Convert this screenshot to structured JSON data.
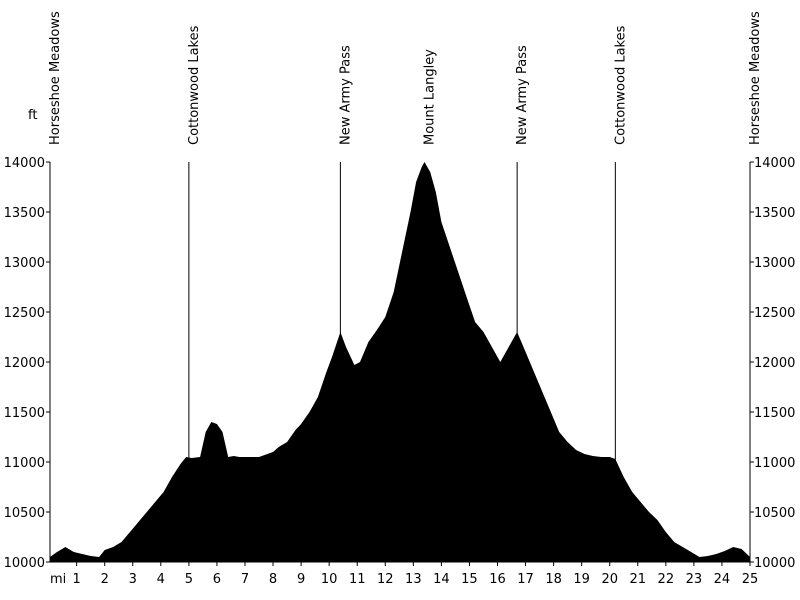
{
  "chart_data": {
    "type": "area",
    "y_unit": "ft",
    "x_unit": "mi",
    "xlim": [
      0.05,
      25.0
    ],
    "ylim": [
      10000,
      14000
    ],
    "x_ticks": [
      1,
      2,
      3,
      4,
      5,
      6,
      7,
      8,
      9,
      10,
      11,
      12,
      13,
      14,
      15,
      16,
      17,
      18,
      19,
      20,
      21,
      22,
      23,
      24,
      25
    ],
    "y_ticks": [
      10000,
      10500,
      11000,
      11500,
      12000,
      12500,
      13000,
      13500,
      14000
    ],
    "landmarks": [
      {
        "name": "Horseshoe Meadows",
        "mile": 0.05,
        "line": false
      },
      {
        "name": "Cottonwood Lakes",
        "mile": 5.0,
        "line": true
      },
      {
        "name": "New Army Pass",
        "mile": 10.4,
        "line": true
      },
      {
        "name": "Mount Langley",
        "mile": 13.4,
        "line": false
      },
      {
        "name": "New Army Pass",
        "mile": 16.7,
        "line": true
      },
      {
        "name": "Cottonwood Lakes",
        "mile": 20.2,
        "line": true
      },
      {
        "name": "Horseshoe Meadows",
        "mile": 25.0,
        "line": false
      }
    ],
    "series": [
      {
        "fill": "#000000",
        "x": [
          0.05,
          0.3,
          0.6,
          0.9,
          1.2,
          1.5,
          1.8,
          2.0,
          2.3,
          2.6,
          2.9,
          3.2,
          3.5,
          3.8,
          4.1,
          4.4,
          4.7,
          4.9,
          5.1,
          5.4,
          5.6,
          5.8,
          6.0,
          6.2,
          6.4,
          6.6,
          6.8,
          7.0,
          7.5,
          8.0,
          8.2,
          8.5,
          8.8,
          9.0,
          9.3,
          9.6,
          9.9,
          10.1,
          10.4,
          10.6,
          10.9,
          11.1,
          11.4,
          11.7,
          12.0,
          12.3,
          12.6,
          12.9,
          13.1,
          13.3,
          13.4,
          13.6,
          13.8,
          14.0,
          14.3,
          14.6,
          14.9,
          15.2,
          15.5,
          15.8,
          16.1,
          16.4,
          16.7,
          17.0,
          17.3,
          17.6,
          17.9,
          18.2,
          18.5,
          18.8,
          19.1,
          19.4,
          19.7,
          20.0,
          20.2,
          20.5,
          20.8,
          21.1,
          21.4,
          21.7,
          22.0,
          22.3,
          22.6,
          22.9,
          23.2,
          23.5,
          23.8,
          24.1,
          24.4,
          24.7,
          25.0
        ],
        "y": [
          10050,
          10100,
          10150,
          10100,
          10080,
          10060,
          10050,
          10120,
          10150,
          10200,
          10300,
          10400,
          10500,
          10600,
          10700,
          10850,
          10980,
          11050,
          11040,
          11050,
          11300,
          11400,
          11380,
          11300,
          11050,
          11060,
          11050,
          11050,
          11050,
          11100,
          11150,
          11200,
          11320,
          11380,
          11500,
          11650,
          11900,
          12050,
          12300,
          12150,
          11970,
          12000,
          12200,
          12320,
          12450,
          12700,
          13100,
          13500,
          13800,
          13950,
          14000,
          13900,
          13700,
          13400,
          13150,
          12900,
          12650,
          12400,
          12300,
          12150,
          12000,
          12150,
          12300,
          12100,
          11900,
          11700,
          11500,
          11300,
          11200,
          11120,
          11080,
          11060,
          11050,
          11050,
          11030,
          10850,
          10700,
          10600,
          10500,
          10420,
          10300,
          10200,
          10150,
          10100,
          10050,
          10060,
          10080,
          10110,
          10150,
          10130,
          10050
        ]
      }
    ]
  }
}
